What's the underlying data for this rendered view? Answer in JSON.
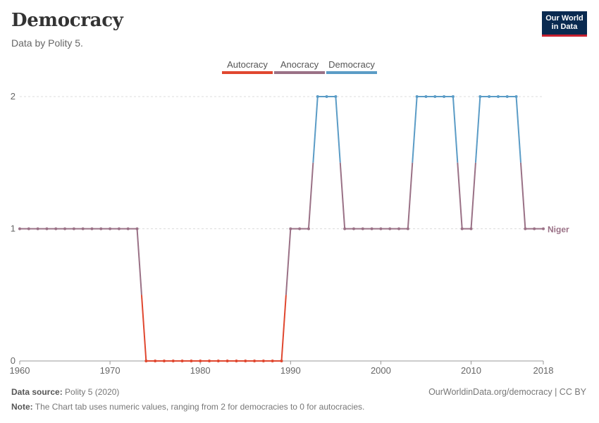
{
  "header": {
    "title": "Democracy",
    "subtitle": "Data by Polity 5.",
    "logo_line1": "Our World",
    "logo_line2": "in Data"
  },
  "footer": {
    "source_label": "Data source:",
    "source_value": "Polity 5 (2020)",
    "url": "OurWorldinData.org/democracy | CC BY",
    "note_label": "Note:",
    "note_value": "The Chart tab uses numeric values, ranging from 2 for democracies to 0 for autocracies."
  },
  "chart_data": {
    "type": "line",
    "title": "Democracy",
    "subtitle": "Data by Polity 5.",
    "xlabel": "",
    "ylabel": "",
    "xlim": [
      1960,
      2018
    ],
    "ylim": [
      0,
      2
    ],
    "x_ticks": [
      "1960",
      "1970",
      "1980",
      "1990",
      "2000",
      "2010",
      "2018"
    ],
    "y_ticks": [
      "0",
      "1",
      "2"
    ],
    "grid": true,
    "legend_position": "top-center",
    "legend": [
      {
        "label": "Autocracy",
        "color": "#e0472f"
      },
      {
        "label": "Anocracy",
        "color": "#9a7186"
      },
      {
        "label": "Democracy",
        "color": "#5b9cc6"
      }
    ],
    "series": [
      {
        "name": "Niger",
        "x": [
          1960,
          1961,
          1962,
          1963,
          1964,
          1965,
          1966,
          1967,
          1968,
          1969,
          1970,
          1971,
          1972,
          1973,
          1974,
          1975,
          1976,
          1977,
          1978,
          1979,
          1980,
          1981,
          1982,
          1983,
          1984,
          1985,
          1986,
          1987,
          1988,
          1989,
          1990,
          1991,
          1992,
          1993,
          1994,
          1995,
          1996,
          1997,
          1998,
          1999,
          2000,
          2001,
          2002,
          2003,
          2004,
          2005,
          2006,
          2007,
          2008,
          2009,
          2010,
          2011,
          2012,
          2013,
          2014,
          2015,
          2016,
          2017,
          2018
        ],
        "values": [
          1,
          1,
          1,
          1,
          1,
          1,
          1,
          1,
          1,
          1,
          1,
          1,
          1,
          1,
          0,
          0,
          0,
          0,
          0,
          0,
          0,
          0,
          0,
          0,
          0,
          0,
          0,
          0,
          0,
          0,
          1,
          1,
          1,
          2,
          2,
          2,
          1,
          1,
          1,
          1,
          1,
          1,
          1,
          1,
          2,
          2,
          2,
          2,
          2,
          1,
          1,
          2,
          2,
          2,
          2,
          2,
          1,
          1,
          1
        ]
      }
    ]
  }
}
